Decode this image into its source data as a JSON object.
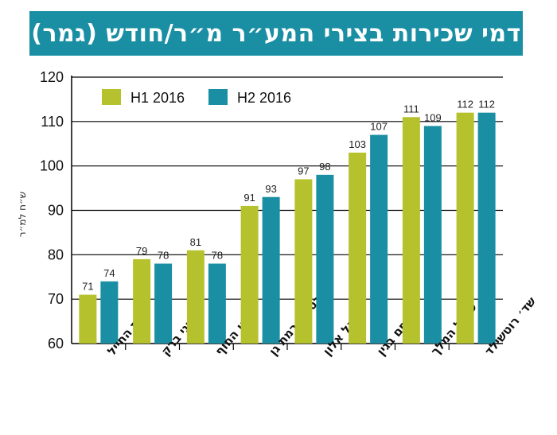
{
  "title": "דמי שכירות בצירי המע״ר מ״ר/חודש (גמר)",
  "chart_data": {
    "type": "bar",
    "title": "דמי שכירות בצירי המע״ר מ״ר/חודש (גמר)",
    "ylabel": "ש״ח למ״ר",
    "xlabel": "",
    "ylim": [
      60,
      120
    ],
    "yticks": [
      60,
      70,
      80,
      90,
      100,
      110,
      120
    ],
    "grid": true,
    "legend_position": "top-left",
    "categories": [
      "רמת החייל",
      "בני ברק",
      "קו החוף",
      "בורסה - רמת גן",
      "יגאל אלון",
      "מנחם בגין",
      "שאול המלך",
      "שד׳ רוטשילד"
    ],
    "series": [
      {
        "name": "H1 2016",
        "color": "#b5c22d",
        "values": [
          71,
          79,
          81,
          91,
          97,
          103,
          111,
          112
        ]
      },
      {
        "name": "H2 2016",
        "color": "#1a8fa3",
        "values": [
          74,
          78,
          78,
          93,
          98,
          107,
          109,
          112
        ]
      }
    ]
  }
}
